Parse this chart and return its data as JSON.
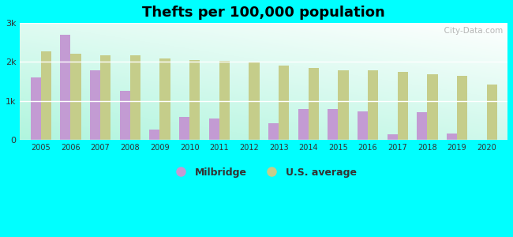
{
  "title": "Thefts per 100,000 population",
  "years": [
    2005,
    2006,
    2007,
    2008,
    2009,
    2010,
    2011,
    2012,
    2013,
    2014,
    2015,
    2016,
    2017,
    2018,
    2019,
    2020
  ],
  "milbridge": [
    1600,
    2700,
    1780,
    1250,
    270,
    580,
    540,
    0,
    420,
    790,
    800,
    720,
    150,
    700,
    155,
    0
  ],
  "us_average": [
    2280,
    2220,
    2170,
    2170,
    2090,
    2050,
    2030,
    1980,
    1900,
    1840,
    1790,
    1790,
    1740,
    1680,
    1650,
    1420
  ],
  "milbridge_color": "#c39bd3",
  "us_avg_color": "#c5cd8a",
  "background_top": "#f0fff0",
  "background_bottom": "#b0eedd",
  "outer_background": "#00ffff",
  "ylim": [
    0,
    3000
  ],
  "yticks": [
    0,
    1000,
    2000,
    3000
  ],
  "ytick_labels": [
    "0",
    "1k",
    "2k",
    "3k"
  ],
  "bar_width": 0.35,
  "legend_milbridge": "Milbridge",
  "legend_us": "U.S. average",
  "title_fontsize": 13,
  "watermark": "  City-Data.com"
}
